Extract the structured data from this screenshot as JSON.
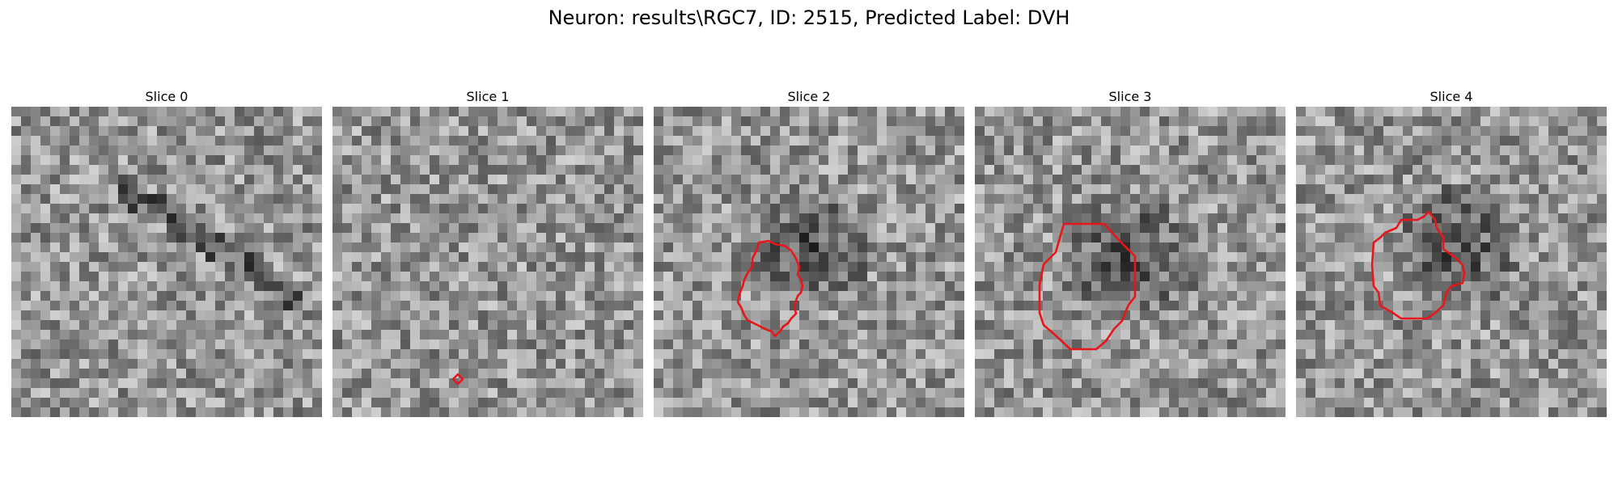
{
  "figure": {
    "title": "Neuron: results\\RGC7, ID: 2515, Predicted Label: DVH"
  },
  "colors": {
    "contour": "#e8161a",
    "background": "#ffffff"
  },
  "panels": [
    {
      "title": "Slice 0",
      "seed": 11,
      "dark_blob": false,
      "contour": "none"
    },
    {
      "title": "Slice 1",
      "seed": 23,
      "dark_blob": false,
      "contour": "tiny-diamond"
    },
    {
      "title": "Slice 2",
      "seed": 37,
      "dark_blob": true,
      "contour": "blob"
    },
    {
      "title": "Slice 3",
      "seed": 51,
      "dark_blob": true,
      "contour": "octagon"
    },
    {
      "title": "Slice 4",
      "seed": 73,
      "dark_blob": true,
      "contour": "irregular"
    }
  ]
}
